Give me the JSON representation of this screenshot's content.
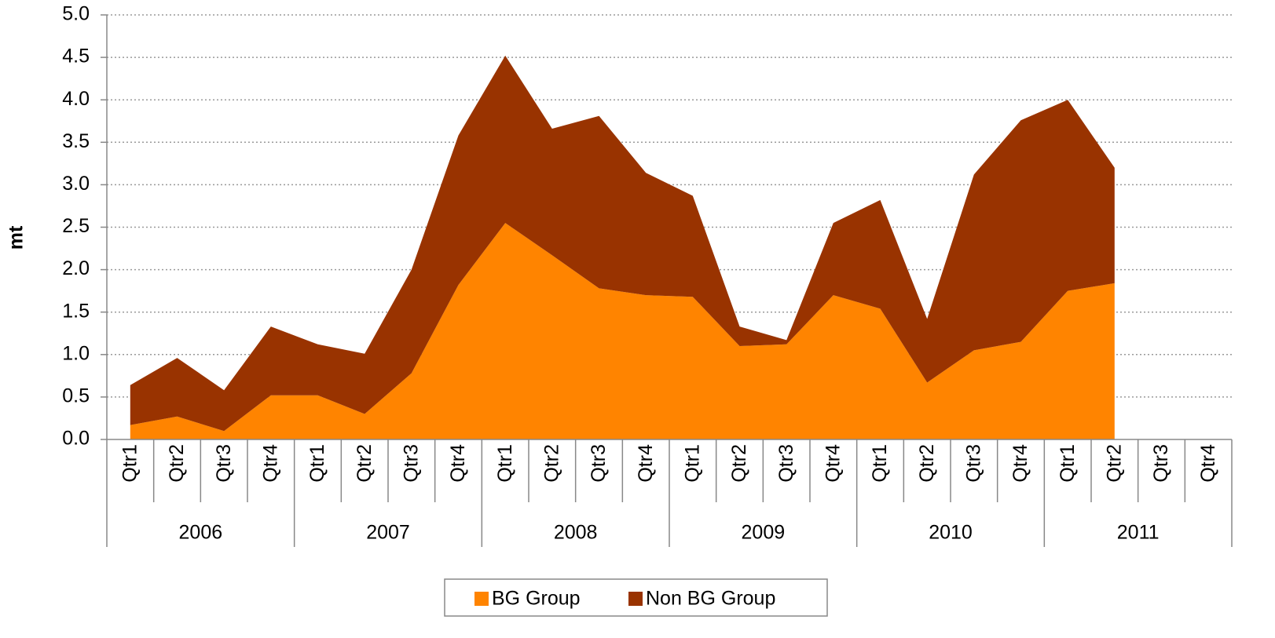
{
  "chart_data": {
    "type": "stacked_area",
    "y_label": "mt",
    "categories": [
      "Qtr1",
      "Qtr2",
      "Qtr3",
      "Qtr4",
      "Qtr1",
      "Qtr2",
      "Qtr3",
      "Qtr4",
      "Qtr1",
      "Qtr2",
      "Qtr3",
      "Qtr4",
      "Qtr1",
      "Qtr2",
      "Qtr3",
      "Qtr4",
      "Qtr1",
      "Qtr2",
      "Qtr3",
      "Qtr4",
      "Qtr1",
      "Qtr2",
      "Qtr3",
      "Qtr4"
    ],
    "groups": [
      "2006",
      "2007",
      "2008",
      "2009",
      "2010",
      "2011"
    ],
    "series": [
      {
        "name": "BG Group",
        "color": "#ff8400",
        "values": [
          0.17,
          0.27,
          0.1,
          0.52,
          0.52,
          0.3,
          0.78,
          1.82,
          2.55,
          2.17,
          1.78,
          1.7,
          1.68,
          1.1,
          1.12,
          1.7,
          1.54,
          0.67,
          1.05,
          1.15,
          1.75,
          1.84,
          null,
          null
        ]
      },
      {
        "name": "Non BG Group",
        "color": "#993300",
        "values": [
          0.47,
          0.69,
          0.48,
          0.81,
          0.6,
          0.71,
          1.22,
          1.76,
          1.97,
          1.49,
          2.03,
          1.44,
          1.19,
          0.23,
          0.05,
          0.85,
          1.28,
          0.75,
          2.07,
          2.61,
          2.25,
          1.36,
          null,
          null
        ]
      }
    ],
    "ylim": [
      0,
      5
    ],
    "yticks": [
      {
        "value": 0,
        "label": "0.0"
      },
      0.5,
      {
        "value": 1,
        "label": "1.0"
      },
      1.5,
      {
        "value": 2,
        "label": "2.0"
      },
      2.5,
      {
        "value": 3,
        "label": "3.0"
      },
      3.5,
      {
        "value": 4,
        "label": "4.0"
      },
      4.5,
      {
        "value": 5,
        "label": "5.0"
      }
    ],
    "grid": true,
    "legend": "bottom"
  }
}
